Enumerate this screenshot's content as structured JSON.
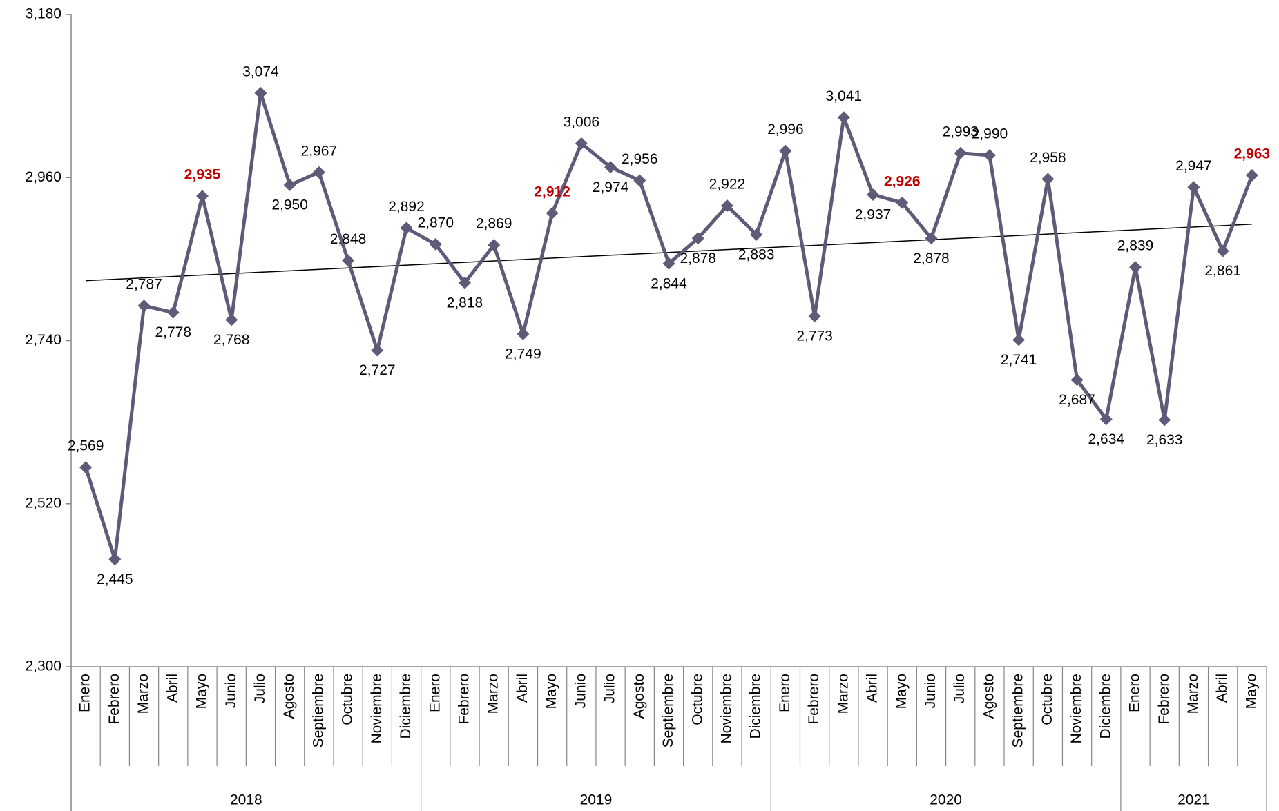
{
  "chart_data": {
    "type": "line",
    "groups": [
      {
        "name": "2018",
        "categories": [
          "Enero",
          "Febrero",
          "Marzo",
          "Abril",
          "Mayo",
          "Junio",
          "Julio",
          "Agosto",
          "Septiembre",
          "Octubre",
          "Noviembre",
          "Diciembre"
        ]
      },
      {
        "name": "2019",
        "categories": [
          "Enero",
          "Febrero",
          "Marzo",
          "Abril",
          "Mayo",
          "Junio",
          "Julio",
          "Agosto",
          "Septiembre",
          "Octubre",
          "Noviembre",
          "Diciembre"
        ]
      },
      {
        "name": "2020",
        "categories": [
          "Enero",
          "Febrero",
          "Marzo",
          "Abril",
          "Mayo",
          "Junio",
          "Julio",
          "Agosto",
          "Septiembre",
          "Octubre",
          "Noviembre",
          "Diciembre"
        ]
      },
      {
        "name": "2021",
        "categories": [
          "Enero",
          "Febrero",
          "Marzo",
          "Abril",
          "Mayo"
        ]
      }
    ],
    "values": [
      2569,
      2445,
      2787,
      2778,
      2935,
      2768,
      3074,
      2950,
      2967,
      2848,
      2727,
      2892,
      2870,
      2818,
      2869,
      2749,
      2912,
      3006,
      2974,
      2956,
      2844,
      2878,
      2922,
      2883,
      2996,
      2773,
      3041,
      2937,
      2926,
      2878,
      2993,
      2990,
      2741,
      2958,
      2687,
      2634,
      2839,
      2633,
      2947,
      2861,
      2963
    ],
    "value_labels": [
      "2,569",
      "2,445",
      "2,787",
      "2,778",
      "2,935",
      "2,768",
      "3,074",
      "2,950",
      "2,967",
      "2,848",
      "2,727",
      "2,892",
      "2,870",
      "2,818",
      "2,869",
      "2,749",
      "2,912",
      "3,006",
      "2,974",
      "2,956",
      "2,844",
      "2,878",
      "2,922",
      "2,883",
      "2,996",
      "2,773",
      "3,041",
      "2,937",
      "2,926",
      "2,878",
      "2,993",
      "2,990",
      "2,741",
      "2,958",
      "2,687",
      "2,634",
      "2,839",
      "2,633",
      "2,947",
      "2,861",
      "2,963"
    ],
    "color": "#5f5a78",
    "highlight": {
      "category": "Mayo",
      "color": "#c00000"
    },
    "trendline": true,
    "ylim": [
      2300,
      3180
    ],
    "yticks": [
      {
        "value": 2300,
        "label": "2,300"
      },
      {
        "value": 2520,
        "label": "2,520"
      },
      {
        "value": 2740,
        "label": "2,740"
      },
      {
        "value": 2960,
        "label": "2,960"
      },
      {
        "value": 3180,
        "label": "3,180"
      }
    ]
  }
}
